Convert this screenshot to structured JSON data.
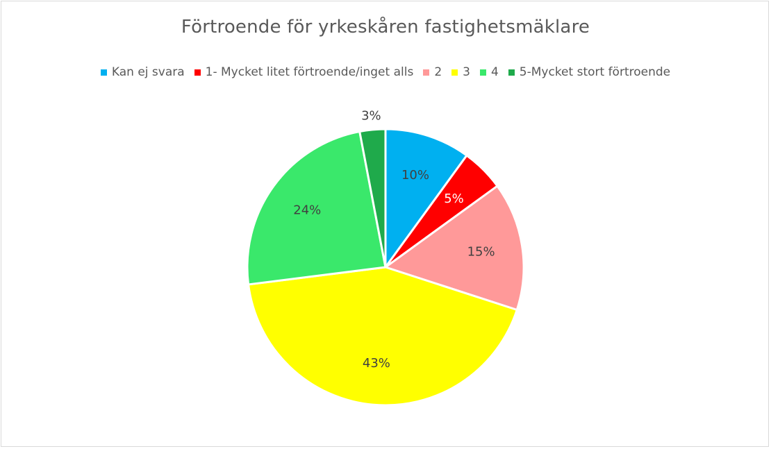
{
  "chart_data": {
    "type": "pie",
    "title": "Förtroende för yrkeskåren fastighetsmäklare",
    "legend_position": "top",
    "categories": [
      "Kan ej svara",
      "1- Mycket litet förtroende/inget alls",
      "2",
      "3",
      "4",
      "5-Mycket stort förtroende"
    ],
    "values": [
      10,
      5,
      15,
      43,
      24,
      3
    ],
    "data_labels": [
      "10%",
      "5%",
      "15%",
      "43%",
      "24%",
      "3%"
    ],
    "colors": [
      "#00b0f0",
      "#ff0000",
      "#ff9999",
      "#ffff00",
      "#3ae86b",
      "#1faa4b"
    ],
    "label_colors": [
      "#404040",
      "#ffffff",
      "#404040",
      "#404040",
      "#404040",
      "#404040"
    ]
  }
}
